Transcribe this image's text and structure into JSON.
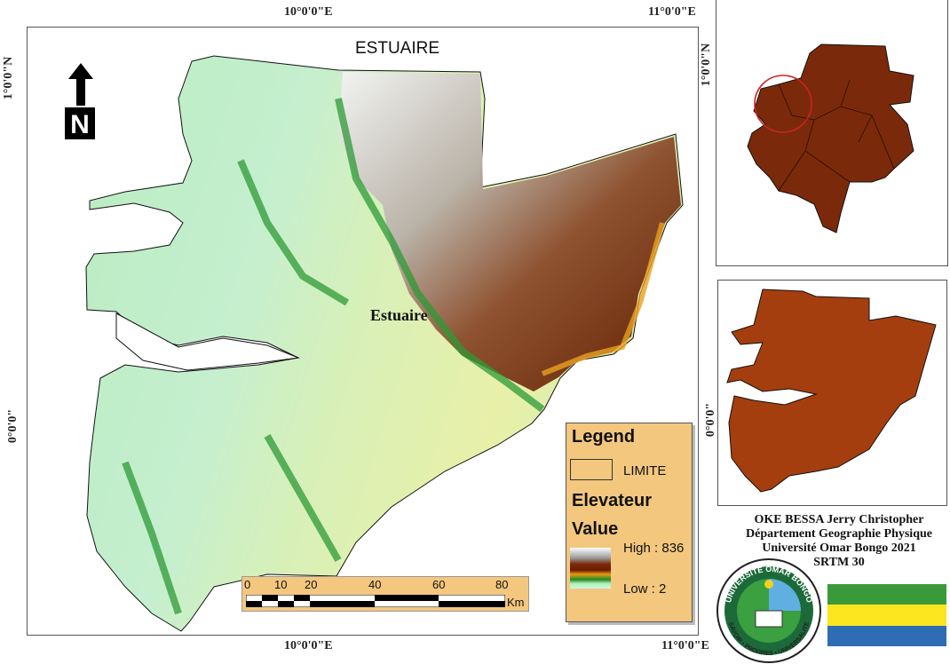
{
  "map": {
    "title": "ESTUAIRE",
    "region_label": "Estuaire",
    "coords": {
      "top_lon_1": "10°0'0\"E",
      "top_lon_2": "11°0'0\"E",
      "bottom_lon_1": "10°0'0\"E",
      "bottom_lon_2": "11°0'0\"E",
      "left_lat_1": "1°0'0\"N",
      "left_lat_2": "0°0'0\"",
      "inset_lat_1": "1°0'0\"N",
      "inset_lat_2": "0°0'0\""
    },
    "north_arrow": "N"
  },
  "legend": {
    "title": "Legend",
    "limit_label": "LIMITE",
    "layer_name": "Elevateur",
    "value_label": "Value",
    "high": "High : 836",
    "low": "Low : 2",
    "ramp_colors": [
      "#ffffff",
      "#9a9a9a",
      "#7a2a0a",
      "#6b1c00",
      "#e89a10",
      "#1e8a2a",
      "#b8f0b0",
      "#c8f8e8"
    ]
  },
  "scale_bar": {
    "ticks": [
      "0",
      "10",
      "20",
      "40",
      "60",
      "80"
    ],
    "unit": "Km"
  },
  "credits": {
    "lines": [
      "OKE BESSA Jerry Christopher",
      "Département Geographie Physique",
      "Université Omar Bongo 2021",
      "SRTM 30"
    ]
  },
  "logo": {
    "top_text": "UNIVERSITE OMAR BONGO",
    "bottom_text": "SAVOIR • PROGRES • UNIVERSALITE"
  },
  "flag": {
    "colors": [
      "#3a9a3a",
      "#fce620",
      "#2e6cb4"
    ]
  },
  "colors": {
    "gabon_inset": "#7a2a0a",
    "estuaire_inset": "#a53e0e",
    "highlight_circle": "#cc2222"
  }
}
